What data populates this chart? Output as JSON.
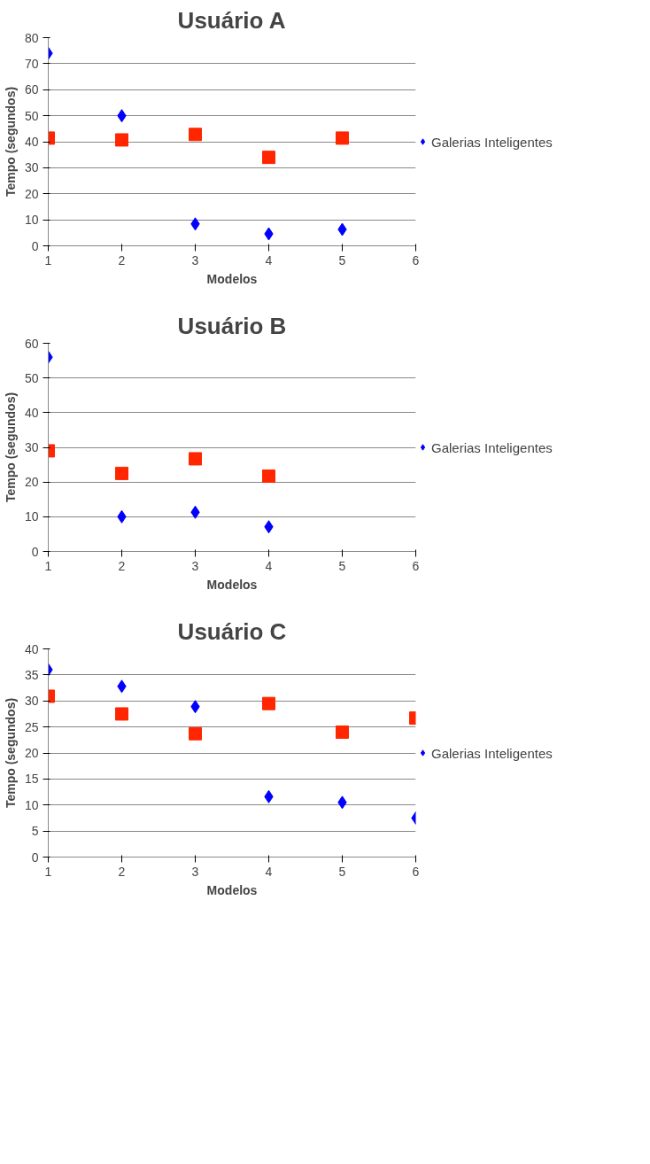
{
  "chart_data": [
    {
      "type": "scatter",
      "title": "Usuário A",
      "xlabel": "Modelos",
      "ylabel": "Tempo (segundos)",
      "xlim": [
        1,
        6
      ],
      "xticks": [
        1,
        2,
        3,
        4,
        5,
        6
      ],
      "ylim": [
        0,
        80
      ],
      "yticks": [
        0,
        10,
        20,
        30,
        40,
        50,
        60,
        70,
        80
      ],
      "grid": "y",
      "legend": "right",
      "series": [
        {
          "name": "Galerias Inteligentes",
          "color": "#0000ff",
          "marker": "diamond",
          "x": [
            1,
            2,
            3,
            4,
            5
          ],
          "values": [
            74,
            50,
            8.4,
            4.6,
            6.3
          ]
        },
        {
          "color": "#ff2600",
          "marker": "square",
          "x": [
            1,
            2,
            3,
            4,
            5
          ],
          "values": [
            41.4,
            40.7,
            42.8,
            34,
            41.4
          ]
        }
      ]
    },
    {
      "type": "scatter",
      "title": "Usuário B",
      "xlabel": "Modelos",
      "ylabel": "Tempo (segundos)",
      "xlim": [
        1,
        6
      ],
      "xticks": [
        1,
        2,
        3,
        4,
        5,
        6
      ],
      "ylim": [
        0,
        60
      ],
      "yticks": [
        0,
        10,
        20,
        30,
        40,
        50,
        60
      ],
      "grid": "y",
      "legend": "right",
      "series": [
        {
          "name": "Galerias Inteligentes",
          "color": "#0000ff",
          "marker": "diamond",
          "x": [
            1,
            2,
            3,
            4
          ],
          "values": [
            56,
            10,
            11.3,
            7.1
          ]
        },
        {
          "color": "#ff2600",
          "marker": "square",
          "x": [
            1,
            2,
            3,
            4
          ],
          "values": [
            29,
            22.5,
            26.7,
            21.7
          ]
        }
      ]
    },
    {
      "type": "scatter",
      "title": "Usuário C",
      "xlabel": "Modelos",
      "ylabel": "Tempo (segundos)",
      "xlim": [
        1,
        6
      ],
      "xticks": [
        1,
        2,
        3,
        4,
        5,
        6
      ],
      "ylim": [
        0,
        40
      ],
      "yticks": [
        0,
        5,
        10,
        15,
        20,
        25,
        30,
        35,
        40
      ],
      "grid": "y",
      "legend": "right",
      "series": [
        {
          "name": "Galerias Inteligentes",
          "color": "#0000ff",
          "marker": "diamond",
          "x": [
            1,
            2,
            3,
            4,
            5,
            6
          ],
          "values": [
            36,
            32.8,
            28.9,
            11.6,
            10.5,
            7.5
          ]
        },
        {
          "color": "#ff2600",
          "marker": "square",
          "x": [
            1,
            2,
            3,
            4,
            5,
            6
          ],
          "values": [
            30.9,
            27.5,
            23.7,
            29.5,
            24,
            26.7
          ]
        }
      ]
    }
  ]
}
